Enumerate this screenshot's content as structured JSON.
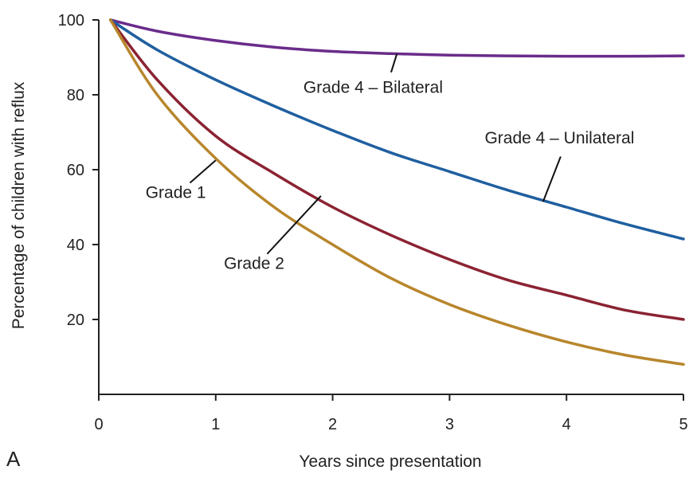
{
  "chart_data": {
    "type": "line",
    "title": "",
    "panel_label": "A",
    "xlabel": "Years since presentation",
    "ylabel": "Percentage of children with reflux",
    "xlim": [
      0,
      5
    ],
    "ylim": [
      0,
      100
    ],
    "x_ticks": [
      "0",
      "1",
      "2",
      "3",
      "4",
      "5"
    ],
    "y_ticks": [
      "20",
      "40",
      "60",
      "80",
      "100"
    ],
    "grid": false,
    "legend": "none",
    "series": [
      {
        "name": "Grade 4 – Bilateral",
        "color": "#6a2c8a",
        "x": [
          0.1,
          0.5,
          1,
          1.5,
          2,
          2.5,
          3,
          3.5,
          4,
          4.5,
          5
        ],
        "y": [
          100,
          97,
          94.5,
          92.7,
          91.6,
          91,
          90.6,
          90.4,
          90.3,
          90.3,
          90.4
        ]
      },
      {
        "name": "Grade 4 – Unilateral",
        "color": "#1f5fa0",
        "x": [
          0.1,
          0.5,
          1,
          1.5,
          2,
          2.5,
          3,
          3.5,
          4,
          4.5,
          5
        ],
        "y": [
          100,
          92,
          84,
          77,
          70.5,
          64.5,
          59.5,
          54.5,
          50,
          45.5,
          41.5
        ]
      },
      {
        "name": "Grade 2",
        "color": "#8b2332",
        "x": [
          0.1,
          0.5,
          1,
          1.5,
          2,
          2.5,
          3,
          3.5,
          4,
          4.5,
          5
        ],
        "y": [
          100,
          84,
          69,
          59,
          50,
          42.5,
          36,
          30.5,
          26.5,
          22.5,
          20
        ]
      },
      {
        "name": "Grade 1",
        "color": "#b8862c",
        "x": [
          0.1,
          0.5,
          1,
          1.5,
          2,
          2.5,
          3,
          3.5,
          4,
          4.5,
          5
        ],
        "y": [
          100,
          80,
          63,
          50,
          40,
          31,
          24,
          18.5,
          14,
          10.5,
          8
        ]
      }
    ],
    "annotations": [
      {
        "text": "Grade 4 – Bilateral",
        "anchor": "start",
        "text_x": 1.75,
        "text_y": 80.5,
        "leader_from": [
          2.5,
          86
        ],
        "leader_to": [
          2.55,
          91
        ]
      },
      {
        "text": "Grade 4 – Unilateral",
        "anchor": "start",
        "text_x": 3.3,
        "text_y": 67,
        "leader_from": [
          3.95,
          63.5
        ],
        "leader_to": [
          3.8,
          51.5
        ]
      },
      {
        "text": "Grade 1",
        "anchor": "start",
        "text_x": 0.4,
        "text_y": 52.5,
        "leader_from": [
          0.78,
          56.5
        ],
        "leader_to": [
          1.0,
          62.5
        ]
      },
      {
        "text": "Grade 2",
        "anchor": "start",
        "text_x": 1.07,
        "text_y": 33.5,
        "leader_from": [
          1.44,
          37.5
        ],
        "leader_to": [
          1.9,
          53
        ]
      }
    ]
  }
}
